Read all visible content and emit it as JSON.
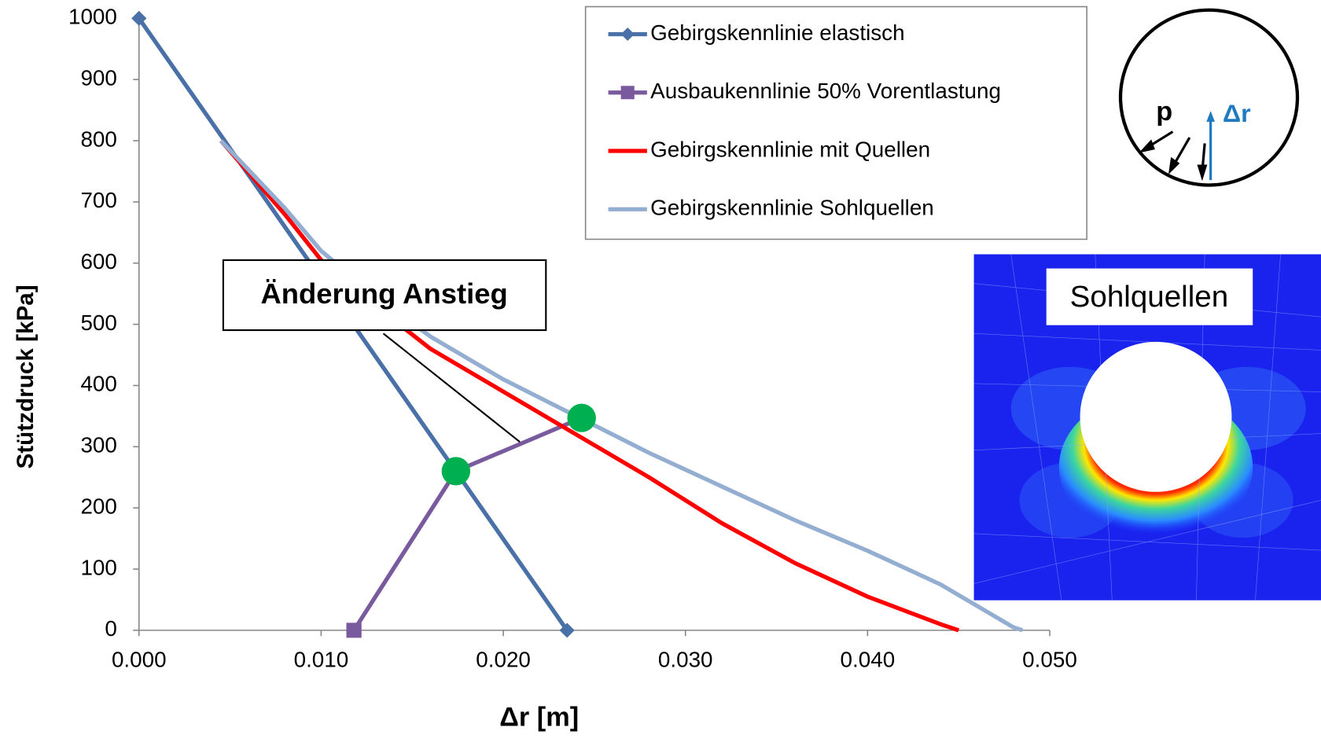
{
  "chart_data": {
    "type": "line",
    "x_label": "Δr [m]",
    "y_label": "Stützdruck [kPa]",
    "xlim": [
      0,
      0.05
    ],
    "xticks": [
      {
        "value": 0,
        "label": "0.000"
      },
      {
        "value": 0.01,
        "label": "0.010"
      },
      {
        "value": 0.02,
        "label": "0.020"
      },
      {
        "value": 0.03,
        "label": "0.030"
      },
      {
        "value": 0.04,
        "label": "0.040"
      },
      {
        "value": 0.05,
        "label": "0.050"
      }
    ],
    "ylim": [
      0,
      1000
    ],
    "yticks": [
      0,
      100,
      200,
      300,
      400,
      500,
      600,
      700,
      800,
      900,
      1000
    ],
    "grid": false,
    "series": [
      {
        "name": "Gebirgskennlinie elastisch",
        "color": "#4a70a8",
        "marker": "diamond",
        "x": [
          0,
          0.0235
        ],
        "values": [
          1000,
          0
        ]
      },
      {
        "name": "Ausbaukennlinie 50% Vorentlastung",
        "color": "#7a5a9e",
        "marker": "square",
        "x": [
          0.0118,
          0.0174,
          0.0243
        ],
        "values": [
          0,
          260,
          347
        ]
      },
      {
        "name": "Gebirgskennlinie mit Quellen",
        "color": "#ff0000",
        "marker": "none",
        "x": [
          0.0045,
          0.008,
          0.01,
          0.013,
          0.016,
          0.02,
          0.024,
          0.028,
          0.032,
          0.036,
          0.04,
          0.044,
          0.045
        ],
        "values": [
          800,
          680,
          605,
          530,
          460,
          390,
          320,
          250,
          175,
          110,
          55,
          10,
          0
        ]
      },
      {
        "name": "Gebirgskennlinie Sohlquellen",
        "color": "#94aed2",
        "marker": "none",
        "x": [
          0.0045,
          0.008,
          0.01,
          0.013,
          0.016,
          0.02,
          0.024,
          0.028,
          0.032,
          0.036,
          0.04,
          0.044,
          0.048,
          0.0485
        ],
        "values": [
          800,
          690,
          620,
          545,
          480,
          410,
          350,
          290,
          235,
          180,
          130,
          75,
          5,
          0
        ]
      }
    ],
    "highlight_points": {
      "color": "#00b050",
      "x": [
        0.0174,
        0.0243
      ],
      "values": [
        260,
        347
      ]
    },
    "annotation": "Änderung Anstieg"
  },
  "inset_sketch": {
    "p_label": "p",
    "dr_label": "Δr"
  },
  "inset_image": {
    "label": "Sohlquellen"
  }
}
